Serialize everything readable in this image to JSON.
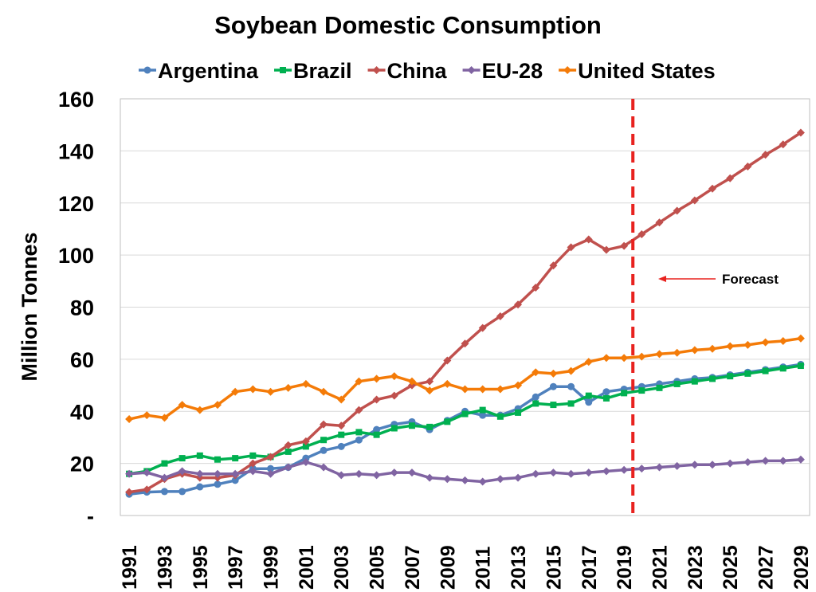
{
  "chart_data": {
    "type": "line",
    "title": "Soybean Domestic Consumption",
    "ylabel": "Million Tonnes",
    "xlabel": "",
    "ylim": [
      0,
      160
    ],
    "yticks": [
      0,
      20,
      40,
      60,
      80,
      100,
      120,
      140,
      160
    ],
    "ytick_labels": [
      "-",
      "20",
      "40",
      "60",
      "80",
      "100",
      "120",
      "140",
      "160"
    ],
    "xlim": [
      1991,
      2029
    ],
    "xtick_labels": [
      "1991",
      "1993",
      "1995",
      "1997",
      "1999",
      "2001",
      "2003",
      "2005",
      "2007",
      "2009",
      "2011",
      "2013",
      "2015",
      "2017",
      "2019",
      "2021",
      "2023",
      "2025",
      "2027",
      "2029"
    ],
    "grid": "horizontal",
    "legend": "top",
    "forecast_line": {
      "x": 2019.5,
      "color": "#e8221f"
    },
    "annotation": {
      "text": "Forecast",
      "arrow": "left"
    },
    "x": [
      1991,
      1992,
      1993,
      1994,
      1995,
      1996,
      1997,
      1998,
      1999,
      2000,
      2001,
      2002,
      2003,
      2004,
      2005,
      2006,
      2007,
      2008,
      2009,
      2010,
      2011,
      2012,
      2013,
      2014,
      2015,
      2016,
      2017,
      2018,
      2019,
      2020,
      2021,
      2022,
      2023,
      2024,
      2025,
      2026,
      2027,
      2028,
      2029
    ],
    "series": [
      {
        "name": "Argentina",
        "color": "#4f81bd",
        "marker": "circle",
        "values": [
          8.2,
          9,
          9.2,
          9.2,
          11,
          12,
          13.5,
          18,
          18,
          18.5,
          22,
          25,
          26.5,
          29,
          33,
          35,
          36,
          33,
          36.5,
          40,
          38.5,
          38.5,
          41,
          45.5,
          49.5,
          49.5,
          43.5,
          47.5,
          48.5,
          49.5,
          50.5,
          51.5,
          52.5,
          53,
          54,
          55,
          56,
          57,
          58
        ]
      },
      {
        "name": "Brazil",
        "color": "#00b050",
        "marker": "square",
        "values": [
          16,
          17,
          20,
          22,
          23,
          21.5,
          22,
          23,
          22.5,
          24.5,
          26.5,
          29,
          31,
          32,
          31,
          33.5,
          34.5,
          34,
          36,
          39,
          40.5,
          38,
          39.5,
          43,
          42.5,
          43,
          46,
          45,
          47,
          48,
          49,
          50.5,
          51.5,
          52.5,
          53.5,
          54.5,
          55.5,
          56.5,
          57.5
        ]
      },
      {
        "name": "China",
        "color": "#c0504d",
        "marker": "diamond",
        "values": [
          9,
          10,
          14,
          16,
          14.5,
          14.5,
          15.5,
          20,
          22.5,
          27,
          28.5,
          35,
          34.5,
          40.5,
          44.5,
          46,
          50,
          51.5,
          59.5,
          66,
          72,
          76.5,
          81,
          87.5,
          96,
          103,
          106,
          102,
          103.5,
          108,
          112.5,
          117,
          121,
          125.5,
          129.5,
          134,
          138.5,
          142.5,
          147
        ]
      },
      {
        "name": "EU-28",
        "color": "#8064a2",
        "marker": "diamond",
        "values": [
          16,
          16.5,
          14.5,
          17,
          16,
          16,
          16,
          17,
          16,
          18.5,
          20.5,
          18.5,
          15.5,
          16,
          15.5,
          16.5,
          16.5,
          14.5,
          14,
          13.5,
          13,
          14,
          14.5,
          16,
          16.5,
          16,
          16.5,
          17,
          17.5,
          18,
          18.5,
          19,
          19.5,
          19.5,
          20,
          20.5,
          21,
          21,
          21.5
        ]
      },
      {
        "name": "United States",
        "color": "#f47b08",
        "marker": "diamond",
        "values": [
          37,
          38.5,
          37.5,
          42.5,
          40.5,
          42.5,
          47.5,
          48.5,
          47.5,
          49,
          50.5,
          47.5,
          44.5,
          51.5,
          52.5,
          53.5,
          51.5,
          48,
          50.5,
          48.5,
          48.5,
          48.5,
          50,
          55,
          54.5,
          55.5,
          59,
          60.5,
          60.5,
          61,
          62,
          62.5,
          63.5,
          64,
          65,
          65.5,
          66.5,
          67,
          68
        ]
      }
    ]
  }
}
